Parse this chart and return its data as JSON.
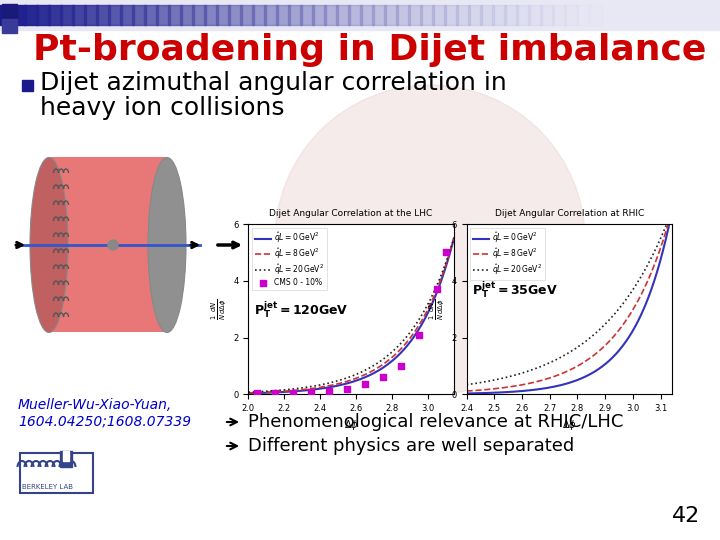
{
  "title": "Pt-broadening in Dijet imbalance",
  "title_color": "#cc0000",
  "title_fontsize": 26,
  "bullet_text_line1": "Dijet azimuthal angular correlation in",
  "bullet_text_line2": "heavy ion collisions",
  "bullet_fontsize": 18,
  "bullet_color": "#000000",
  "bullet_marker_color": "#1a1a8c",
  "ref_text": "Mueller-Wu-Xiao-Yuan,\n1604.04250;1608.07339",
  "ref_color": "#0000cc",
  "ref_fontsize": 10,
  "arrow_items": [
    "Phenomenological relevance at RHIC/LHC",
    "Different physics are well separated"
  ],
  "arrow_fontsize": 13,
  "page_number": "42",
  "background_color": "#ffffff",
  "header_bar_color": "#f0f0f8",
  "lhc_title": "Dijet Angular Correlation at the LHC",
  "rhic_title": "Dijet Angular Correlation at RHIC",
  "lhc_label": "P$_T^{jet}$=120GeV",
  "rhic_label": "P$_T^{jet}$=35GeV",
  "watermark_color": "#e8c8c8",
  "watermark_alpha": 0.35
}
